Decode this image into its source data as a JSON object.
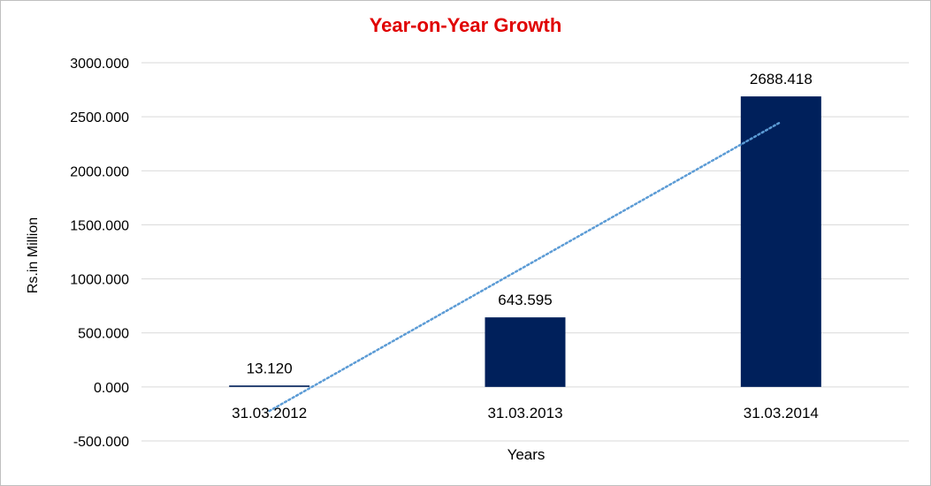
{
  "chart_data": {
    "type": "bar",
    "title": "Year-on-Year Growth",
    "xlabel": "Years",
    "ylabel": "Rs.in Million",
    "categories": [
      "31.03.2012",
      "31.03.2013",
      "31.03.2014"
    ],
    "values": [
      13.12,
      643.595,
      2688.418
    ],
    "value_labels": [
      "13.120",
      "643.595",
      "2688.418"
    ],
    "ylim": [
      -500,
      3000
    ],
    "yticks": [
      "-500.000",
      "0.000",
      "500.000",
      "1000.000",
      "1500.000",
      "2000.000",
      "2500.000",
      "3000.000"
    ],
    "ytick_values": [
      -500,
      0,
      500,
      1000,
      1500,
      2000,
      2500,
      3000
    ],
    "grid": true,
    "legend": "none",
    "trendline": {
      "type": "linear",
      "style": "dotted"
    },
    "colors": {
      "bar": "#00205b",
      "trendline": "#5b9bd5",
      "title": "#e00000",
      "grid": "#d9d9d9"
    }
  }
}
